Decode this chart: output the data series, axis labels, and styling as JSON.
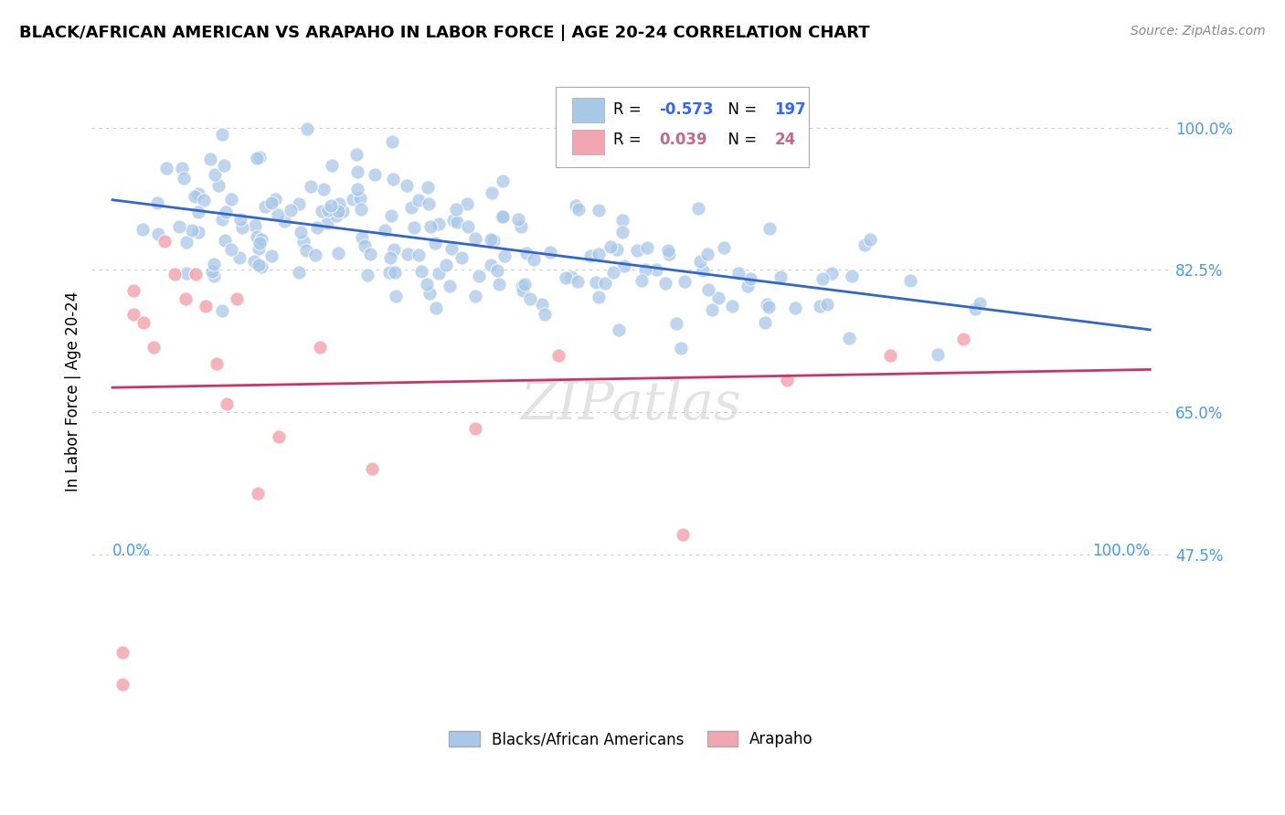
{
  "title": "BLACK/AFRICAN AMERICAN VS ARAPAHO IN LABOR FORCE | AGE 20-24 CORRELATION CHART",
  "source": "Source: ZipAtlas.com",
  "ylabel": "In Labor Force | Age 20-24",
  "xlim": [
    -0.02,
    1.02
  ],
  "ylim": [
    0.28,
    1.07
  ],
  "yticks": [
    0.475,
    0.65,
    0.825,
    1.0
  ],
  "ytick_labels": [
    "47.5%",
    "65.0%",
    "82.5%",
    "100.0%"
  ],
  "xtick_labels": [
    "0.0%",
    "100.0%"
  ],
  "xticks": [
    0.0,
    1.0
  ],
  "blue_R": -0.573,
  "blue_N": 197,
  "pink_R": 0.039,
  "pink_N": 24,
  "blue_color": "#a8c8e8",
  "pink_color": "#f4a6b0",
  "blue_line_color": "#3366cc",
  "pink_line_color": "#cc3366",
  "legend_blue_label": "Blacks/African Americans",
  "legend_pink_label": "Arapaho",
  "tick_color": "#4499ff",
  "blue_R_color": "#3366ff",
  "pink_R_color": "#cc6688"
}
